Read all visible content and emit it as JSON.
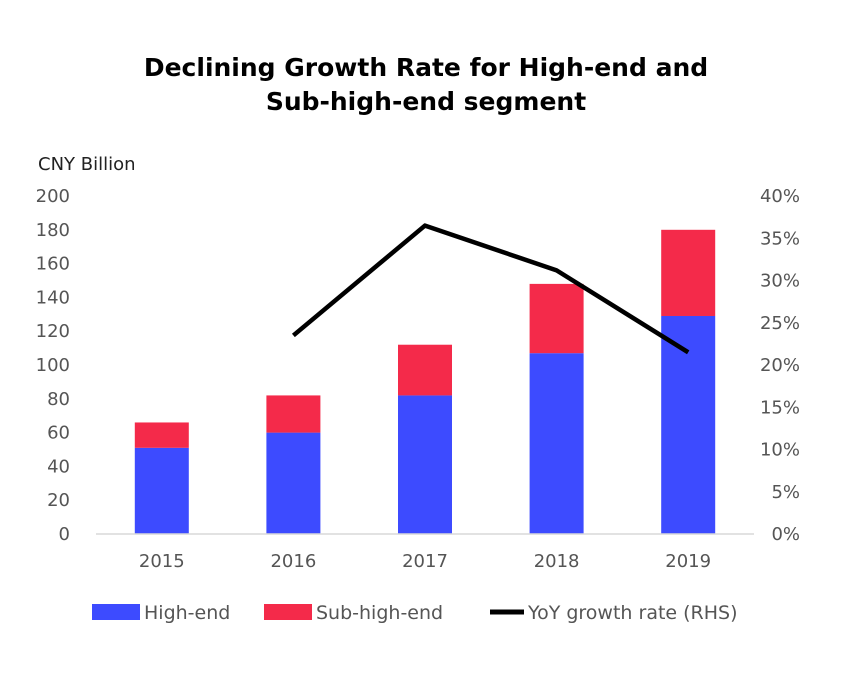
{
  "chart_data": {
    "type": "bar",
    "stacked": true,
    "title_line1": "Declining Growth Rate for High-end and",
    "title_line2": "Sub-high-end segment",
    "ylabel_left": "CNY Billion",
    "categories": [
      "2015",
      "2016",
      "2017",
      "2018",
      "2019"
    ],
    "ylim_left": [
      0,
      200
    ],
    "yticks_left": [
      "0",
      "20",
      "40",
      "60",
      "80",
      "100",
      "120",
      "140",
      "160",
      "180",
      "200"
    ],
    "ylim_right": [
      0,
      40
    ],
    "yticks_right": [
      "0%",
      "5%",
      "10%",
      "15%",
      "20%",
      "25%",
      "30%",
      "35%",
      "40%"
    ],
    "grid": false,
    "legend_position": "bottom",
    "series": [
      {
        "name": "High-end",
        "type": "bar",
        "axis": "left",
        "color": "#3d4bff",
        "values": [
          51,
          60,
          82,
          107,
          129
        ]
      },
      {
        "name": "Sub-high-end",
        "type": "bar",
        "axis": "left",
        "color": "#f42a4a",
        "values": [
          15,
          22,
          30,
          41,
          51
        ]
      },
      {
        "name": "YoY growth rate (RHS)",
        "type": "line",
        "axis": "right",
        "color": "#000000",
        "values": [
          null,
          23.5,
          36.5,
          31.2,
          21.5
        ]
      }
    ]
  }
}
